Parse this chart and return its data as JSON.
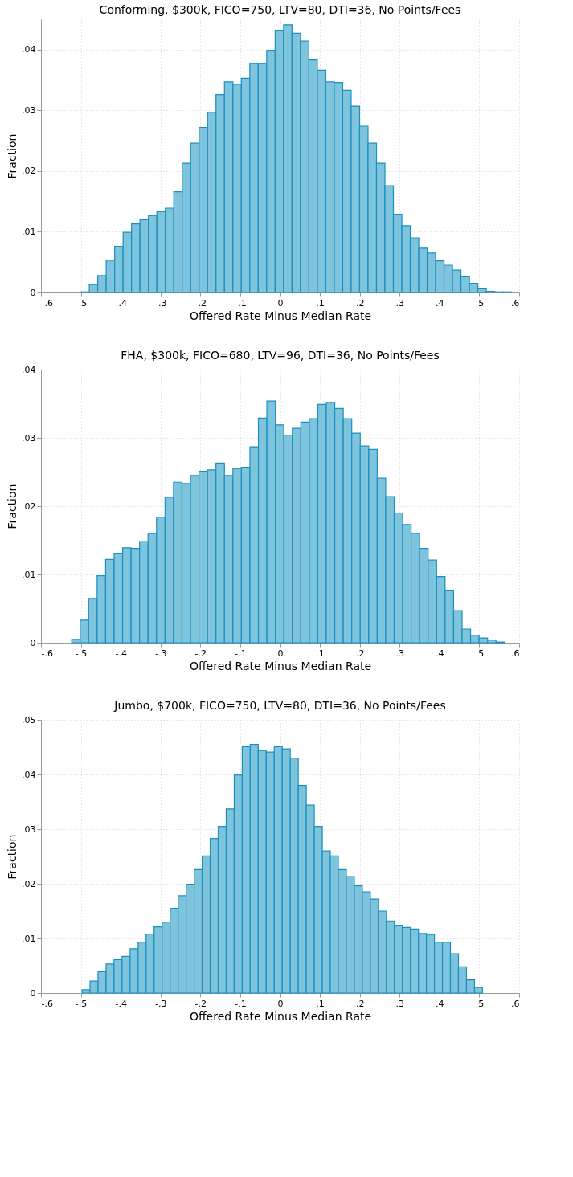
{
  "chart_data": [
    {
      "type": "histogram",
      "title": "Conforming, $300k, FICO=750, LTV=80, DTI=36, No Points/Fees",
      "xlabel": "Offered Rate Minus Median Rate",
      "ylabel": "Fraction",
      "color": "#7fc4dd",
      "bins": [
        -0.5,
        -0.4788,
        -0.4576,
        -0.4364,
        -0.4152,
        -0.394,
        -0.3728,
        -0.3516,
        -0.3304,
        -0.3092,
        -0.288,
        -0.2668,
        -0.2456,
        -0.2244,
        -0.2032,
        -0.182,
        -0.1608,
        -0.1396,
        -0.1184,
        -0.0972,
        -0.076,
        -0.0548,
        -0.0336,
        -0.0124,
        0.0088,
        0.03,
        0.0512,
        0.0724,
        0.0936,
        0.1148,
        0.136,
        0.1572,
        0.1784,
        0.1996,
        0.2208,
        0.242,
        0.2632,
        0.2844,
        0.3056,
        0.3268,
        0.348,
        0.3692,
        0.3904,
        0.4116,
        0.4328,
        0.454,
        0.4752,
        0.4964,
        0.5176,
        0.5388,
        0.56,
        0.5812
      ],
      "values": [
        0.0001,
        0.0013,
        0.0028,
        0.0053,
        0.0076,
        0.0099,
        0.0113,
        0.012,
        0.0127,
        0.0133,
        0.0139,
        0.0166,
        0.0213,
        0.0246,
        0.0272,
        0.0297,
        0.0326,
        0.0347,
        0.0343,
        0.0353,
        0.0377,
        0.0377,
        0.0399,
        0.0432,
        0.0441,
        0.0427,
        0.0414,
        0.0383,
        0.0366,
        0.0347,
        0.0346,
        0.0333,
        0.0307,
        0.0274,
        0.0246,
        0.0213,
        0.0176,
        0.0129,
        0.011,
        0.009,
        0.0073,
        0.0065,
        0.0052,
        0.0045,
        0.0037,
        0.0026,
        0.0015,
        0.0006,
        0.0002,
        0.0001,
        0.0001
      ],
      "xlim": [
        -0.6,
        0.6
      ],
      "ylim": [
        0,
        0.045
      ],
      "xticks": [
        {
          "value": -0.6,
          "label": "-.6"
        },
        {
          "value": -0.5,
          "label": "-.5"
        },
        {
          "value": -0.4,
          "label": "-.4"
        },
        {
          "value": -0.3,
          "label": "-.3"
        },
        {
          "value": -0.2,
          "label": "-.2"
        },
        {
          "value": -0.1,
          "label": "-.1"
        },
        {
          "value": 0,
          "label": "0"
        },
        {
          "value": 0.1,
          "label": ".1"
        },
        {
          "value": 0.2,
          "label": ".2"
        },
        {
          "value": 0.3,
          "label": ".3"
        },
        {
          "value": 0.4,
          "label": ".4"
        },
        {
          "value": 0.5,
          "label": ".5"
        },
        {
          "value": 0.6,
          "label": ".6"
        }
      ],
      "yticks": [
        {
          "value": 0,
          "label": "0"
        },
        {
          "value": 0.01,
          "label": ".01"
        },
        {
          "value": 0.02,
          "label": ".02"
        },
        {
          "value": 0.03,
          "label": ".03"
        },
        {
          "value": 0.04,
          "label": ".04"
        }
      ],
      "grid": true
    },
    {
      "type": "histogram",
      "title": "FHA, $300k, FICO=680, LTV=96, DTI=36, No Points/Fees",
      "xlabel": "Offered Rate Minus Median Rate",
      "ylabel": "Fraction",
      "color": "#7fc4dd",
      "bins": [
        -0.523,
        -0.5017,
        -0.4804,
        -0.4591,
        -0.4378,
        -0.4165,
        -0.3952,
        -0.3739,
        -0.3526,
        -0.3313,
        -0.31,
        -0.2887,
        -0.2674,
        -0.2461,
        -0.2248,
        -0.2035,
        -0.1822,
        -0.1609,
        -0.1396,
        -0.1183,
        -0.097,
        -0.0757,
        -0.0544,
        -0.0331,
        -0.0118,
        0.0095,
        0.0308,
        0.0521,
        0.0734,
        0.0947,
        0.116,
        0.1373,
        0.1586,
        0.1799,
        0.2012,
        0.2225,
        0.2438,
        0.2651,
        0.2864,
        0.3077,
        0.329,
        0.3503,
        0.3716,
        0.3929,
        0.4142,
        0.4355,
        0.4568,
        0.4781,
        0.4994,
        0.5207,
        0.542,
        0.5633
      ],
      "values": [
        0.0005,
        0.0033,
        0.0065,
        0.0098,
        0.0122,
        0.0131,
        0.0139,
        0.0138,
        0.0148,
        0.016,
        0.0184,
        0.0213,
        0.0235,
        0.0233,
        0.0245,
        0.0251,
        0.0253,
        0.0263,
        0.0245,
        0.0255,
        0.0257,
        0.0287,
        0.0329,
        0.0354,
        0.0319,
        0.0304,
        0.0314,
        0.0323,
        0.0328,
        0.0349,
        0.0352,
        0.0343,
        0.0328,
        0.0307,
        0.0288,
        0.0283,
        0.0241,
        0.0214,
        0.019,
        0.0173,
        0.016,
        0.0138,
        0.0121,
        0.0097,
        0.0077,
        0.0047,
        0.002,
        0.0011,
        0.0007,
        0.0004,
        0.0001
      ],
      "xlim": [
        -0.6,
        0.6
      ],
      "ylim": [
        0,
        0.04
      ],
      "xticks": [
        {
          "value": -0.6,
          "label": "-.6"
        },
        {
          "value": -0.5,
          "label": "-.5"
        },
        {
          "value": -0.4,
          "label": "-.4"
        },
        {
          "value": -0.3,
          "label": "-.3"
        },
        {
          "value": -0.2,
          "label": "-.2"
        },
        {
          "value": -0.1,
          "label": "-.1"
        },
        {
          "value": 0,
          "label": "0"
        },
        {
          "value": 0.1,
          "label": ".1"
        },
        {
          "value": 0.2,
          "label": ".2"
        },
        {
          "value": 0.3,
          "label": ".3"
        },
        {
          "value": 0.4,
          "label": ".4"
        },
        {
          "value": 0.5,
          "label": ".5"
        },
        {
          "value": 0.6,
          "label": ".6"
        }
      ],
      "yticks": [
        {
          "value": 0,
          "label": "0"
        },
        {
          "value": 0.01,
          "label": ".01"
        },
        {
          "value": 0.02,
          "label": ".02"
        },
        {
          "value": 0.03,
          "label": ".03"
        },
        {
          "value": 0.04,
          "label": ".04"
        }
      ],
      "grid": true
    },
    {
      "type": "histogram",
      "title": "Jumbo, $700k, FICO=750, LTV=80, DTI=36, No Points/Fees",
      "xlabel": "Offered Rate Minus Median Rate",
      "ylabel": "Fraction",
      "color": "#7fc4dd",
      "bins": [
        -0.497,
        -0.4769,
        -0.4568,
        -0.4367,
        -0.4166,
        -0.3965,
        -0.3764,
        -0.3563,
        -0.3362,
        -0.3161,
        -0.296,
        -0.2759,
        -0.2558,
        -0.2357,
        -0.2156,
        -0.1955,
        -0.1754,
        -0.1553,
        -0.1352,
        -0.1151,
        -0.095,
        -0.0749,
        -0.0548,
        -0.0347,
        -0.0146,
        0.0055,
        0.0256,
        0.0457,
        0.0658,
        0.0859,
        0.106,
        0.1261,
        0.1462,
        0.1663,
        0.1864,
        0.2065,
        0.2266,
        0.2467,
        0.2668,
        0.2869,
        0.307,
        0.3271,
        0.3472,
        0.3673,
        0.3874,
        0.4075,
        0.4276,
        0.4477,
        0.4678,
        0.4879,
        0.508
      ],
      "values": [
        0.0006,
        0.0022,
        0.0039,
        0.0053,
        0.0061,
        0.0067,
        0.0081,
        0.0093,
        0.0108,
        0.0121,
        0.013,
        0.0155,
        0.0178,
        0.0199,
        0.0226,
        0.0251,
        0.0283,
        0.0305,
        0.0337,
        0.0399,
        0.0451,
        0.0455,
        0.0444,
        0.0441,
        0.0451,
        0.0447,
        0.043,
        0.038,
        0.0344,
        0.0305,
        0.026,
        0.0251,
        0.0226,
        0.0213,
        0.0196,
        0.0185,
        0.0172,
        0.015,
        0.0132,
        0.0124,
        0.012,
        0.0117,
        0.0109,
        0.0107,
        0.0093,
        0.0093,
        0.0072,
        0.0048,
        0.0024,
        0.001
      ],
      "xlim": [
        -0.6,
        0.6
      ],
      "ylim": [
        0,
        0.05
      ],
      "xticks": [
        {
          "value": -0.6,
          "label": "-.6"
        },
        {
          "value": -0.5,
          "label": "-.5"
        },
        {
          "value": -0.4,
          "label": "-.4"
        },
        {
          "value": -0.3,
          "label": "-.3"
        },
        {
          "value": -0.2,
          "label": "-.2"
        },
        {
          "value": -0.1,
          "label": "-.1"
        },
        {
          "value": 0,
          "label": "0"
        },
        {
          "value": 0.1,
          "label": ".1"
        },
        {
          "value": 0.2,
          "label": ".2"
        },
        {
          "value": 0.3,
          "label": ".3"
        },
        {
          "value": 0.4,
          "label": ".4"
        },
        {
          "value": 0.5,
          "label": ".5"
        },
        {
          "value": 0.6,
          "label": ".6"
        }
      ],
      "yticks": [
        {
          "value": 0,
          "label": "0"
        },
        {
          "value": 0.01,
          "label": ".01"
        },
        {
          "value": 0.02,
          "label": ".02"
        },
        {
          "value": 0.03,
          "label": ".03"
        },
        {
          "value": 0.04,
          "label": ".04"
        },
        {
          "value": 0.05,
          "label": ".05"
        }
      ],
      "grid": true
    }
  ]
}
